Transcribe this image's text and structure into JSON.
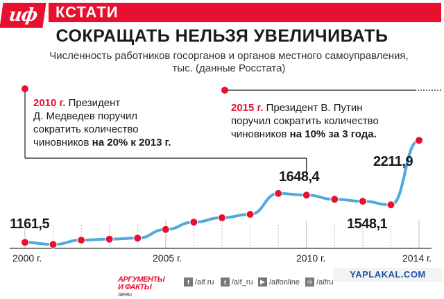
{
  "header": {
    "logo_text": "иф",
    "section_label": "КСТАТИ"
  },
  "title": "СОКРАЩАТЬ НЕЛЬЗЯ УВЕЛИЧИВАТЬ",
  "subtitle": "Численность работников госорганов и органов местного самоуправления, тыс. (данные Росстата)",
  "notes": {
    "note2010": {
      "year": "2010 г.",
      "text1": " Президент",
      "text2": "Д. Медведев поручил",
      "text3": "сократить количество",
      "text4": "чиновников ",
      "bold": "на 20% к 2013 г."
    },
    "note2015": {
      "year": "2015 г.",
      "text1": " Президент В. Путин",
      "text2": "поручил сократить количество",
      "text3": "чиновников ",
      "bold": "на 10% за 3 года."
    }
  },
  "chart_data": {
    "type": "line",
    "title": "СОКРАЩАТЬ НЕЛЬЗЯ УВЕЛИЧИВАТЬ",
    "x": [
      2000,
      2001,
      2002,
      2003,
      2004,
      2005,
      2006,
      2007,
      2008,
      2009,
      2010,
      2011,
      2012,
      2013,
      2014
    ],
    "values": [
      1161.5,
      1140,
      1185,
      1195,
      1205,
      1295,
      1370,
      1415,
      1450,
      1665,
      1648.4,
      1605,
      1585,
      1548.1,
      2211.9
    ],
    "data_labels": {
      "2000": "1161,5",
      "2010": "1648,4",
      "2013": "1548,1",
      "2014": "2211,9"
    },
    "x_tick_labels": [
      "2000 г.",
      "2005 г.",
      "2010 г.",
      "2014 г."
    ],
    "x_tick_years": [
      2000,
      2005,
      2010,
      2014
    ],
    "ylabel": "",
    "xlabel": "",
    "grid": true,
    "colors": {
      "line": "#4fa8df",
      "marker": "#e8102e",
      "grid": "#bbbbbb"
    }
  },
  "footer": {
    "brand_line1": "АРГУМЕНТЫ",
    "brand_line2": "И ФАКТЫ",
    "brand_site": "AIF.RU",
    "social": [
      {
        "icon": "f",
        "label": "/aif.ru"
      },
      {
        "icon": "t",
        "label": "/aif_ru"
      },
      {
        "icon": "▶",
        "label": "/aifonline"
      },
      {
        "icon": "◎",
        "label": "/aifru"
      }
    ],
    "watermark": "YAPLAKAL.COM"
  }
}
